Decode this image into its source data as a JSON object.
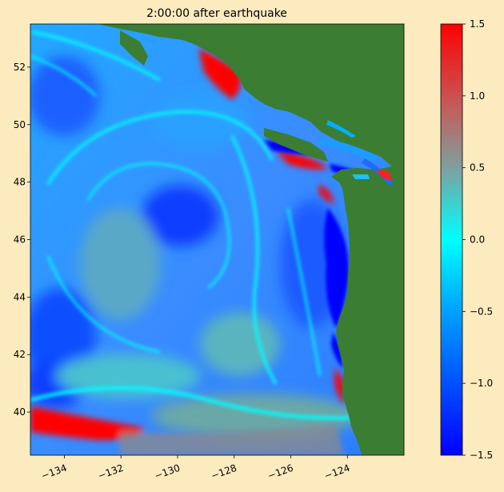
{
  "title": "2:00:00 after earthquake",
  "map": {
    "x_ticks": [
      {
        "value": -134,
        "label": "−134"
      },
      {
        "value": -132,
        "label": "−132"
      },
      {
        "value": -130,
        "label": "−130"
      },
      {
        "value": -128,
        "label": "−128"
      },
      {
        "value": -126,
        "label": "−126"
      },
      {
        "value": -124,
        "label": "−124"
      }
    ],
    "y_ticks": [
      {
        "value": 40,
        "label": "40"
      },
      {
        "value": 42,
        "label": "42"
      },
      {
        "value": 44,
        "label": "44"
      },
      {
        "value": 46,
        "label": "46"
      },
      {
        "value": 48,
        "label": "48"
      },
      {
        "value": 50,
        "label": "50"
      },
      {
        "value": 52,
        "label": "52"
      }
    ],
    "lon_range": [
      -135.2,
      -122.0
    ],
    "lat_range": [
      38.5,
      53.5
    ],
    "land_color": "#3b7d32",
    "colors": {
      "deep_blue": "#0000ff",
      "blue": "#1e6bff",
      "cyan": "#00ffff",
      "teal": "#4fb8b0",
      "grey": "#9a8080",
      "red": "#ff0000"
    }
  },
  "colorbar": {
    "min": -1.5,
    "max": 1.5,
    "ticks": [
      {
        "value": 1.5,
        "label": "1.5"
      },
      {
        "value": 1.0,
        "label": "1.0"
      },
      {
        "value": 0.5,
        "label": "0.5"
      },
      {
        "value": 0.0,
        "label": "0.0"
      },
      {
        "value": -0.5,
        "label": "−0.5"
      },
      {
        "value": -1.0,
        "label": "−1.0"
      },
      {
        "value": -1.5,
        "label": "−1.5"
      }
    ]
  }
}
